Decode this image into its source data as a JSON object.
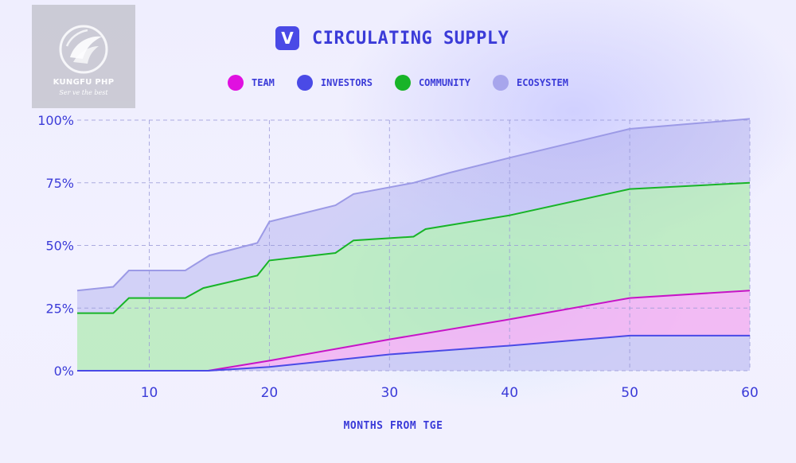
{
  "watermark": {
    "name": "KUNGFU PHP",
    "tagline": "Ser ve the best"
  },
  "header": {
    "logo_letter": "V",
    "title": "CIRCULATING SUPPLY"
  },
  "colors": {
    "accent": "#3b3bd8",
    "team": "#e010e0",
    "investors": "#4a4ae6",
    "community": "#18b428",
    "ecosystem": "#a7a5ec"
  },
  "chart_data": {
    "type": "area",
    "stacked": true,
    "xlabel": "MONTHS FROM TGE",
    "ylabel": "",
    "xlim": [
      4,
      60
    ],
    "ylim": [
      0,
      100
    ],
    "x_ticks": [
      10,
      20,
      30,
      40,
      50,
      60
    ],
    "y_ticks": [
      0,
      25,
      50,
      75,
      100
    ],
    "y_tick_labels": [
      "0%",
      "25%",
      "50%",
      "75%",
      "100%"
    ],
    "grid": true,
    "legend_position": "top-center",
    "series": [
      {
        "name": "TEAM",
        "key": "team",
        "points": [
          [
            4,
            0
          ],
          [
            14.9,
            0
          ],
          [
            20,
            4
          ],
          [
            30,
            12.5
          ],
          [
            40,
            20.5
          ],
          [
            50,
            29
          ],
          [
            60,
            32
          ]
        ]
      },
      {
        "name": "INVESTORS",
        "key": "investors",
        "points": [
          [
            4,
            0
          ],
          [
            14.9,
            0
          ],
          [
            20,
            1.5
          ],
          [
            30,
            6.5
          ],
          [
            40,
            10
          ],
          [
            50,
            14
          ],
          [
            60,
            14
          ]
        ]
      },
      {
        "name": "COMMUNITY",
        "key": "community",
        "points": [
          [
            4,
            23
          ],
          [
            7,
            23
          ],
          [
            8.3,
            29
          ],
          [
            13,
            29
          ],
          [
            14.5,
            33
          ],
          [
            19,
            38
          ],
          [
            20,
            44
          ],
          [
            25.5,
            47
          ],
          [
            27,
            52
          ],
          [
            32,
            53.5
          ],
          [
            33,
            56.5
          ],
          [
            40,
            62
          ],
          [
            50,
            72.5
          ],
          [
            60,
            75
          ]
        ]
      },
      {
        "name": "ECOSYSTEM",
        "key": "ecosystem",
        "points": [
          [
            4,
            32
          ],
          [
            7,
            33.5
          ],
          [
            8.3,
            40
          ],
          [
            13,
            40
          ],
          [
            15,
            46
          ],
          [
            19,
            51
          ],
          [
            20,
            59.5
          ],
          [
            25.5,
            66
          ],
          [
            27,
            70.5
          ],
          [
            32,
            75
          ],
          [
            35,
            79
          ],
          [
            40,
            85
          ],
          [
            50,
            96.5
          ],
          [
            60,
            100.5
          ]
        ]
      }
    ]
  }
}
